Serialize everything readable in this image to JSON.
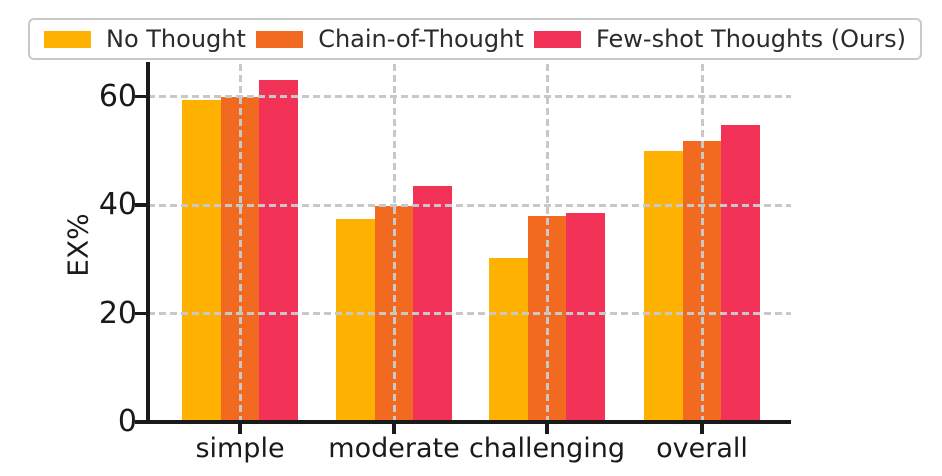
{
  "figure": {
    "background": "#ffffff",
    "axis_color": "#1a1a1a",
    "grid_color": "#c8c8c8",
    "legend_border_color": "#c9c9c9",
    "text_color": "#1a1a1a"
  },
  "legend": {
    "position": "top",
    "items": [
      {
        "label": "No Thought",
        "color": "#FFB101"
      },
      {
        "label": "Chain-of-Thought",
        "color": "#F26A1F"
      },
      {
        "label": "Few-shot Thoughts (Ours)",
        "color": "#F23357"
      }
    ]
  },
  "chart_data": {
    "type": "bar",
    "title": "",
    "xlabel": "",
    "ylabel": "EX%",
    "categories": [
      "simple",
      "moderate",
      "challenging",
      "overall"
    ],
    "series": [
      {
        "name": "No Thought",
        "color": "#FFB101",
        "values": [
          59.4,
          37.4,
          30.2,
          50.0
        ]
      },
      {
        "name": "Chain-of-Thought",
        "color": "#F26A1F",
        "values": [
          59.9,
          39.8,
          38.0,
          51.8
        ]
      },
      {
        "name": "Few-shot Thoughts (Ours)",
        "color": "#F23357",
        "values": [
          63.0,
          43.6,
          38.6,
          54.8
        ]
      }
    ],
    "yticks": [
      0,
      20,
      40,
      60
    ],
    "ylim": [
      0,
      66
    ],
    "grid": {
      "axis": "both",
      "style": "dashed",
      "drawn_above_bars": true
    },
    "legend_position": "top-outside"
  }
}
